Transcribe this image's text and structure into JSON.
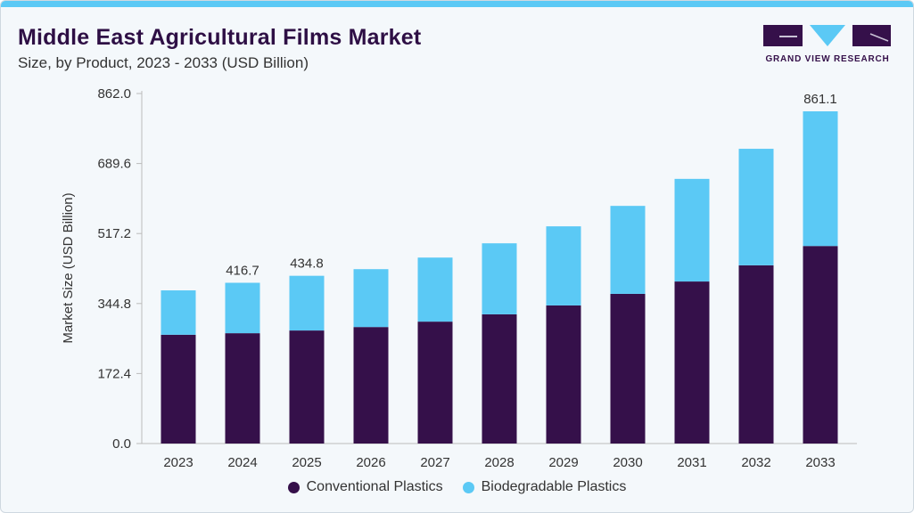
{
  "header": {
    "title": "Middle East Agricultural Films Market",
    "subtitle": "Size, by Product, 2023 - 2033 (USD Billion)"
  },
  "logo": {
    "text": "GRAND VIEW RESEARCH"
  },
  "colors": {
    "conventional": "#35104a",
    "biodegradable": "#5bc9f5",
    "accent": "#5bc9f5"
  },
  "chart_data": {
    "type": "bar",
    "stacked": true,
    "title": "Middle East Agricultural Films Market",
    "ylabel": "Market Size (USD Billion)",
    "xlabel": "",
    "ylim": [
      0,
      862
    ],
    "yticks": [
      "0.0",
      "172.4",
      "344.8",
      "517.2",
      "689.6",
      "862.0"
    ],
    "categories": [
      "2023",
      "2024",
      "2025",
      "2026",
      "2027",
      "2028",
      "2029",
      "2030",
      "2031",
      "2032",
      "2033"
    ],
    "series": [
      {
        "name": "Conventional Plastics",
        "values": [
          282,
          286,
          293,
          302,
          316,
          335,
          358,
          388,
          420,
          462,
          512
        ]
      },
      {
        "name": "Biodegradable Plastics",
        "values": [
          115,
          130.7,
          141.8,
          150,
          166,
          184,
          205,
          228,
          266,
          302,
          349.1
        ]
      }
    ],
    "data_labels": [
      {
        "category": "2024",
        "text": "416.7"
      },
      {
        "category": "2025",
        "text": "434.8"
      },
      {
        "category": "2033",
        "text": "861.1"
      }
    ],
    "legend": "bottom",
    "grid": false
  }
}
